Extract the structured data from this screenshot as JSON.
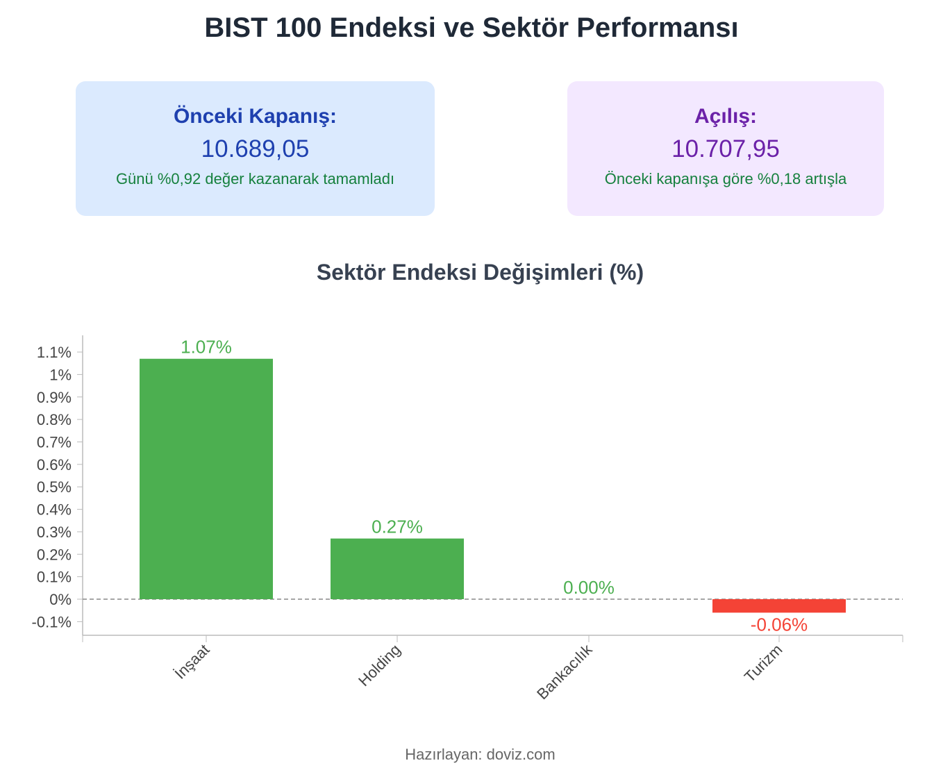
{
  "title": "BIST 100 Endeksi ve Sektör Performansı",
  "cards": [
    {
      "label": "Önceki Kapanış:",
      "value": "10.689,05",
      "note": "Günü %0,92 değer kazanarak tamamladı"
    },
    {
      "label": "Açılış:",
      "value": "10.707,95",
      "note": "Önceki kapanışa göre %0,18 artışla"
    }
  ],
  "footer": "Hazırlayan: doviz.com",
  "colors": {
    "positive": "#4caf50",
    "negative": "#f44336"
  },
  "chart_data": {
    "type": "bar",
    "title": "Sektör Endeksi Değişimleri (%)",
    "categories": [
      "İnşaat",
      "Holding",
      "Bankacılık",
      "Turizm"
    ],
    "values": [
      1.07,
      0.27,
      0.0,
      -0.06
    ],
    "data_labels": [
      "1.07%",
      "0.27%",
      "0.00%",
      "-0.06%"
    ],
    "yticks": [
      -0.1,
      0,
      0.1,
      0.2,
      0.3,
      0.4,
      0.5,
      0.6,
      0.7,
      0.8,
      0.9,
      1,
      1.1
    ],
    "ytick_labels": [
      "-0.1%",
      "0%",
      "0.1%",
      "0.2%",
      "0.3%",
      "0.4%",
      "0.5%",
      "0.6%",
      "0.7%",
      "0.8%",
      "0.9%",
      "1%",
      "1.1%"
    ],
    "ylim": [
      -0.16,
      1.18
    ],
    "xlabel": "",
    "ylabel": "",
    "grid": false,
    "zero_line": "dashed"
  }
}
